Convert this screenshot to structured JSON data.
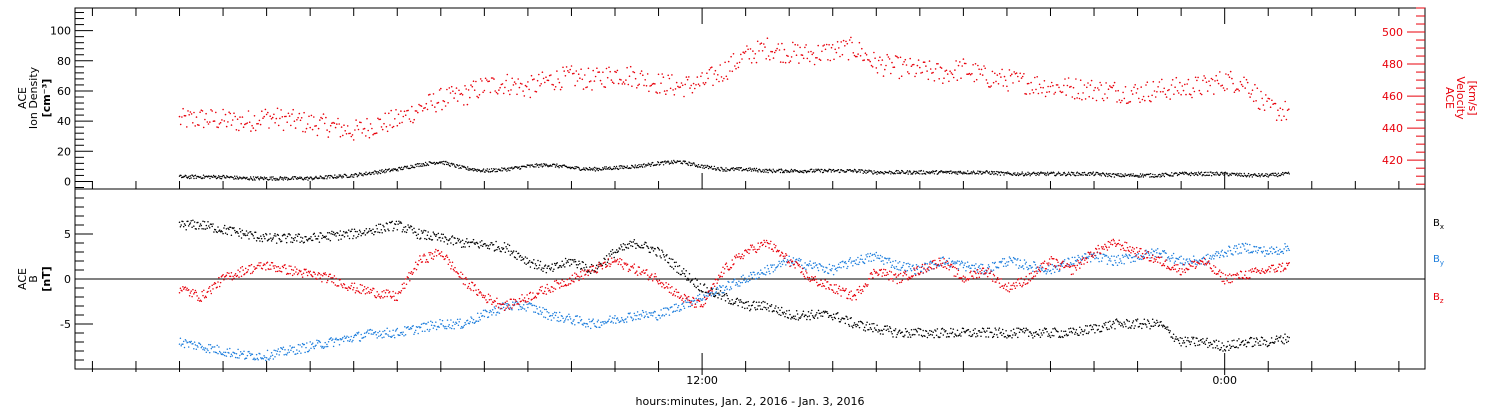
{
  "colors": {
    "black": "#000000",
    "red": "#e8000b",
    "blue": "#1f7fdd"
  },
  "chart_data": [
    {
      "type": "scatter",
      "panel": "top",
      "left_axis": {
        "label_lines": [
          "ACE",
          "Ion Density"
        ],
        "unit": "[cm⁻³]",
        "ylim": [
          -5,
          115
        ],
        "ticks": [
          0,
          20,
          40,
          60,
          80,
          100
        ],
        "tick_labels": [
          "0",
          "20",
          "40",
          "60",
          "80",
          "100"
        ]
      },
      "right_axis": {
        "label_lines": [
          "ACE",
          "Velocity"
        ],
        "unit": "[km/s]",
        "ylim": [
          402,
          515
        ],
        "ticks": [
          420,
          440,
          460,
          480,
          500
        ],
        "tick_labels": [
          "420",
          "440",
          "460",
          "480",
          "500"
        ]
      },
      "series": [
        {
          "key": "velocity",
          "axis": "right",
          "color": "red",
          "x": [
            0,
            0.5,
            1,
            1.5,
            2,
            2.5,
            3,
            3.5,
            4,
            4.5,
            5,
            5.5,
            6,
            6.5,
            7,
            7.5,
            8,
            8.5,
            9,
            9.5,
            10,
            10.5,
            11,
            11.5,
            12,
            12.5,
            13,
            13.5,
            14,
            14.5,
            15,
            15.5,
            16,
            16.5,
            17,
            17.5,
            18,
            18.5,
            19,
            19.5,
            20,
            20.5,
            21,
            21.5,
            22,
            22.5,
            23,
            23.5,
            24,
            24.5,
            25,
            25.5
          ],
          "y": [
            445,
            446,
            445,
            444,
            447,
            445,
            443,
            441,
            438,
            442,
            445,
            452,
            458,
            460,
            466,
            468,
            465,
            470,
            472,
            470,
            474,
            472,
            468,
            466,
            468,
            476,
            485,
            490,
            487,
            486,
            488,
            490,
            480,
            478,
            476,
            474,
            477,
            472,
            470,
            468,
            466,
            465,
            464,
            463,
            462,
            464,
            465,
            466,
            470,
            468,
            452,
            450
          ]
        },
        {
          "key": "density",
          "axis": "left",
          "color": "black",
          "x": [
            0,
            0.5,
            1,
            1.5,
            2,
            2.5,
            3,
            3.5,
            4,
            4.5,
            5,
            5.5,
            6,
            6.5,
            7,
            7.5,
            8,
            8.5,
            9,
            9.5,
            10,
            10.5,
            11,
            11.5,
            12,
            12.5,
            13,
            13.5,
            14,
            14.5,
            15,
            15.5,
            16,
            16.5,
            17,
            17.5,
            18,
            18.5,
            19,
            19.5,
            20,
            20.5,
            21,
            21.5,
            22,
            22.5,
            23,
            23.5,
            24,
            24.5,
            25,
            25.5
          ],
          "y": [
            3,
            3,
            3,
            2,
            2,
            2,
            2,
            3,
            4,
            6,
            8,
            11,
            13,
            9,
            7,
            8,
            10,
            11,
            9,
            8,
            9,
            10,
            12,
            13,
            10,
            8,
            8,
            7,
            7,
            7,
            7,
            7,
            6,
            6,
            6,
            6,
            6,
            6,
            5,
            5,
            5,
            5,
            5,
            4,
            4,
            4,
            5,
            5,
            5,
            4,
            4,
            5
          ]
        }
      ]
    },
    {
      "type": "scatter",
      "panel": "bottom",
      "left_axis": {
        "label_lines": [
          "ACE",
          "B"
        ],
        "unit": "[nT]",
        "ylim": [
          -10,
          10
        ],
        "ticks": [
          -5,
          0,
          5
        ],
        "tick_labels": [
          "-5",
          "0",
          "5"
        ]
      },
      "legend": [
        "Bx",
        "By",
        "Bz"
      ],
      "series": [
        {
          "key": "bx",
          "name": "Bx",
          "color": "black",
          "x": [
            0,
            0.5,
            1,
            1.5,
            2,
            2.5,
            3,
            3.5,
            4,
            4.5,
            5,
            5.5,
            6,
            6.5,
            7,
            7.5,
            8,
            8.5,
            9,
            9.5,
            10,
            10.5,
            11,
            11.5,
            12,
            12.5,
            13,
            13.5,
            14,
            14.5,
            15,
            15.5,
            16,
            16.5,
            17,
            17.5,
            18,
            18.5,
            19,
            19.5,
            20,
            20.5,
            21,
            21.5,
            22,
            22.5,
            23,
            23.5,
            24,
            24.5,
            25,
            25.5
          ],
          "y": [
            6,
            6,
            5.5,
            5,
            4.5,
            4.5,
            4.5,
            4.8,
            5,
            5.5,
            6,
            5,
            4.5,
            4,
            3.8,
            3.5,
            2,
            1,
            2,
            1,
            3,
            4,
            3,
            1,
            -1,
            -2,
            -3,
            -3,
            -4,
            -4,
            -4,
            -5,
            -5.5,
            -6,
            -6,
            -6,
            -6,
            -6,
            -6,
            -6,
            -6,
            -6,
            -5.5,
            -5,
            -5,
            -5,
            -7,
            -7,
            -7.5,
            -7,
            -7,
            -6.5
          ]
        },
        {
          "key": "by",
          "name": "By",
          "color": "blue",
          "x": [
            0,
            0.5,
            1,
            1.5,
            2,
            2.5,
            3,
            3.5,
            4,
            4.5,
            5,
            5.5,
            6,
            6.5,
            7,
            7.5,
            8,
            8.5,
            9,
            9.5,
            10,
            10.5,
            11,
            11.5,
            12,
            12.5,
            13,
            13.5,
            14,
            14.5,
            15,
            15.5,
            16,
            16.5,
            17,
            17.5,
            18,
            18.5,
            19,
            19.5,
            20,
            20.5,
            21,
            21.5,
            22,
            22.5,
            23,
            23.5,
            24,
            24.5,
            25,
            25.5
          ],
          "y": [
            -7,
            -7.5,
            -8,
            -8.5,
            -8.5,
            -8,
            -7.5,
            -7,
            -6.5,
            -6,
            -6,
            -5.5,
            -5,
            -5,
            -4,
            -3,
            -3,
            -4,
            -4.5,
            -5,
            -4.5,
            -4,
            -4,
            -3,
            -2,
            -1,
            0,
            1,
            2,
            1.5,
            1,
            2,
            2.5,
            1.5,
            1,
            2,
            1.5,
            1,
            2,
            1.5,
            1,
            2,
            2.5,
            2,
            2.5,
            3,
            2,
            2,
            3,
            3.5,
            3,
            3.5
          ]
        },
        {
          "key": "bz",
          "name": "Bz",
          "color": "red",
          "x": [
            0,
            0.5,
            1,
            1.5,
            2,
            2.5,
            3,
            3.5,
            4,
            4.5,
            5,
            5.5,
            6,
            6.5,
            7,
            7.5,
            8,
            8.5,
            9,
            9.5,
            10,
            10.5,
            11,
            11.5,
            12,
            12.5,
            13,
            13.5,
            14,
            14.5,
            15,
            15.5,
            16,
            16.5,
            17,
            17.5,
            18,
            18.5,
            19,
            19.5,
            20,
            20.5,
            21,
            21.5,
            22,
            22.5,
            23,
            23.5,
            24,
            24.5,
            25,
            25.5
          ],
          "y": [
            -1,
            -2,
            0,
            1,
            1.5,
            1,
            0.5,
            0,
            -1,
            -1.5,
            -2,
            2,
            3,
            0,
            -2,
            -3,
            -2,
            -1,
            0,
            1,
            2,
            1,
            0,
            -2,
            -3,
            1,
            3,
            4,
            2,
            0,
            -1,
            -2,
            1,
            0,
            1,
            2,
            0,
            1,
            -1,
            0,
            2,
            1,
            3,
            4,
            3,
            2,
            1,
            2,
            0,
            0.5,
            1,
            1.5
          ]
        }
      ]
    }
  ],
  "x_axis": {
    "xlim": [
      -2.4,
      28.6
    ],
    "major_ticks": [
      12,
      24
    ],
    "tick_labels": [
      "12:00",
      "0:00"
    ],
    "title": "hours:minutes, Jan.  2, 2016 - Jan.  3, 2016"
  },
  "legend_labels": {
    "bx": {
      "main": "B",
      "sub": "x"
    },
    "by": {
      "main": "B",
      "sub": "y"
    },
    "bz": {
      "main": "B",
      "sub": "z"
    }
  }
}
